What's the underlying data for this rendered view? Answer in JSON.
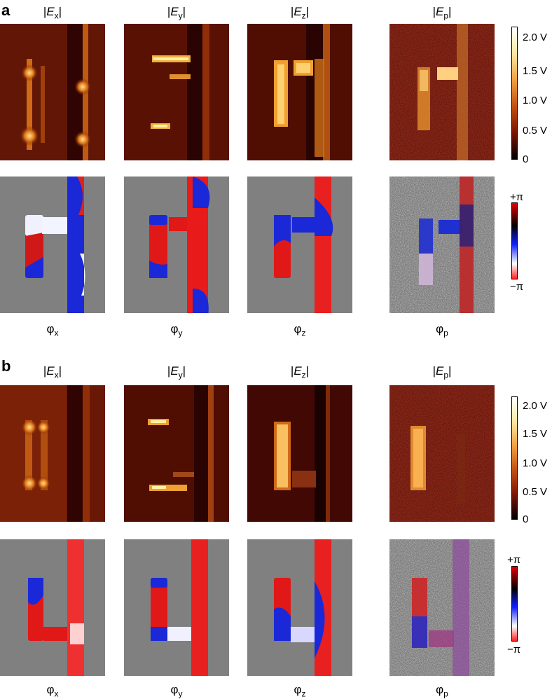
{
  "panels": [
    {
      "label": "a",
      "amp_titles": [
        {
          "sym": "E",
          "sub": "x"
        },
        {
          "sym": "E",
          "sub": "y"
        },
        {
          "sym": "E",
          "sub": "z"
        },
        {
          "sym": "E",
          "sub": "p"
        }
      ],
      "phase_titles": [
        {
          "sym": "φ",
          "sub": "x"
        },
        {
          "sym": "φ",
          "sub": "y"
        },
        {
          "sym": "φ",
          "sub": "z"
        },
        {
          "sym": "φ",
          "sub": "p"
        }
      ],
      "amp_colorbar_ticks": [
        "2.0 V",
        "1.5 V",
        "1.0 V",
        "0.5 V",
        "0"
      ],
      "phase_colorbar_ticks": [
        "+π",
        "−π"
      ]
    },
    {
      "label": "b",
      "amp_titles": [
        {
          "sym": "E",
          "sub": "x"
        },
        {
          "sym": "E",
          "sub": "y"
        },
        {
          "sym": "E",
          "sub": "z"
        },
        {
          "sym": "E",
          "sub": "p"
        }
      ],
      "phase_titles": [
        {
          "sym": "φ",
          "sub": "x"
        },
        {
          "sym": "φ",
          "sub": "y"
        },
        {
          "sym": "φ",
          "sub": "z"
        },
        {
          "sym": "φ",
          "sub": "p"
        }
      ],
      "amp_colorbar_ticks": [
        "2.0 V",
        "1.5 V",
        "1.0 V",
        "0.5 V",
        "0"
      ],
      "phase_colorbar_ticks": [
        "+π",
        "−π"
      ]
    }
  ],
  "colors": {
    "amp_dark": "#3a0602",
    "amp_mid": "#b04a10",
    "amp_hot": "#ffd070",
    "phase_pos": "#e01010",
    "phase_neg": "#1020e0",
    "substrate": "#808080"
  }
}
